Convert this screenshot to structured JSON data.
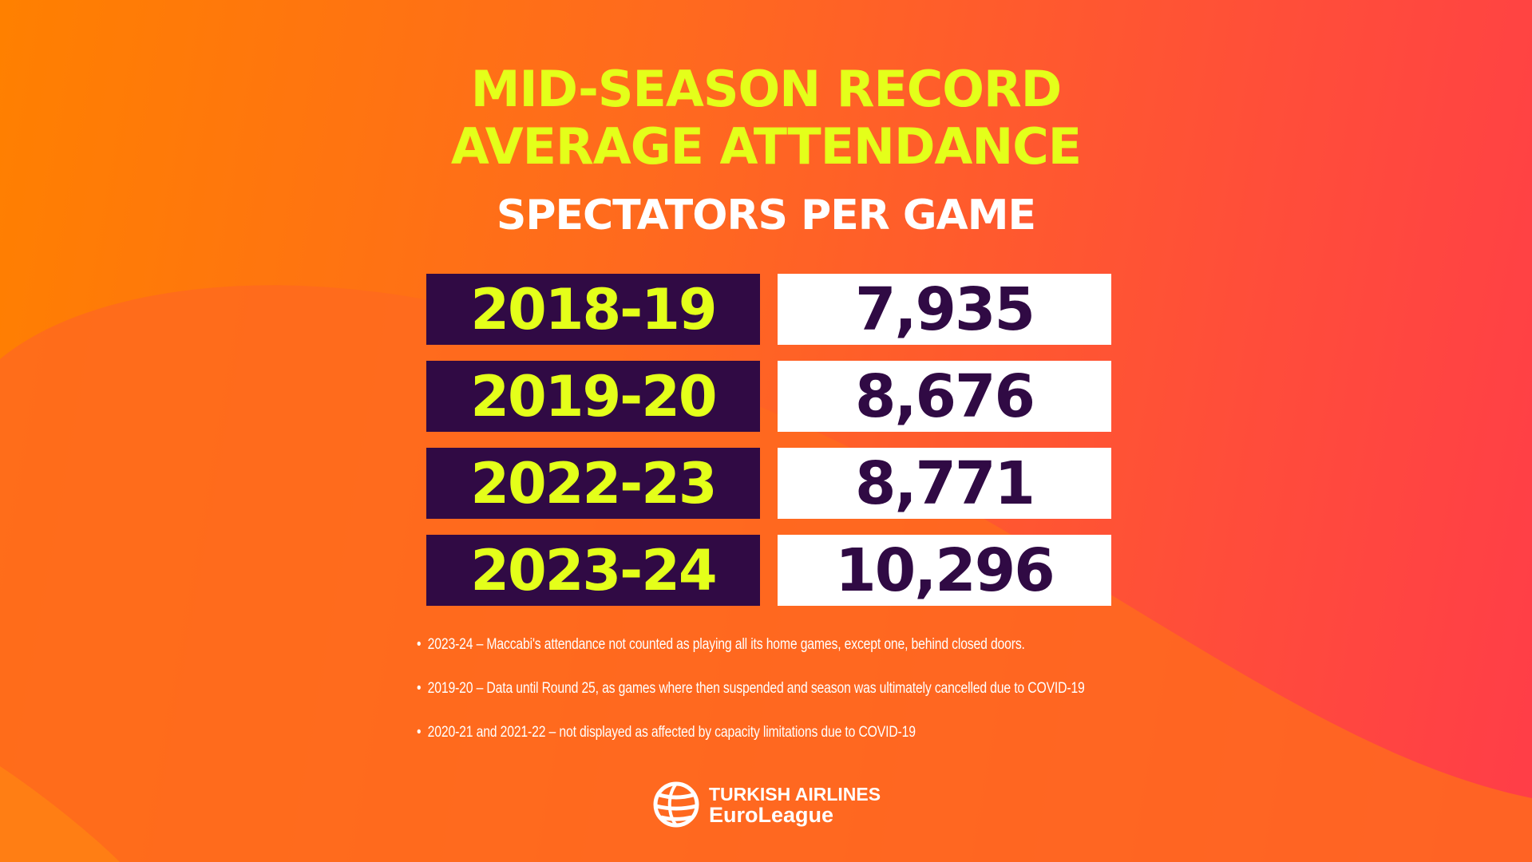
{
  "title_line1": "MID-SEASON RECORD",
  "title_line2": "AVERAGE ATTENDANCE",
  "subtitle": "SPECTATORS PER GAME",
  "colors": {
    "title": "#e4ff1a",
    "season_cell": "#300a44",
    "value_cell": "#ffffff",
    "value_text": "#300a44"
  },
  "rows": [
    {
      "season": "2018-19",
      "value": "7,935"
    },
    {
      "season": "2019-20",
      "value": "8,676"
    },
    {
      "season": "2022-23",
      "value": "8,771"
    },
    {
      "season": "2023-24",
      "value": "10,296"
    }
  ],
  "notes": [
    "2023-24 – Maccabi's attendance not counted as playing all its home games, except one, behind closed doors.",
    "2019-20 – Data until Round 25, as games where then suspended and season was ultimately cancelled due to COVID-19",
    "2020-21 and 2021-22 – not displayed as affected by capacity limitations due to COVID-19"
  ],
  "logo": {
    "line1": "TURKISH AIRLINES",
    "line2": "EuroLeague",
    "icon": "euroleague-ball-icon"
  },
  "chart_data": {
    "type": "table",
    "title": "MID-SEASON RECORD AVERAGE ATTENDANCE",
    "subtitle": "SPECTATORS PER GAME",
    "categories": [
      "2018-19",
      "2019-20",
      "2022-23",
      "2023-24"
    ],
    "values": [
      7935,
      8676,
      8771,
      10296
    ]
  }
}
